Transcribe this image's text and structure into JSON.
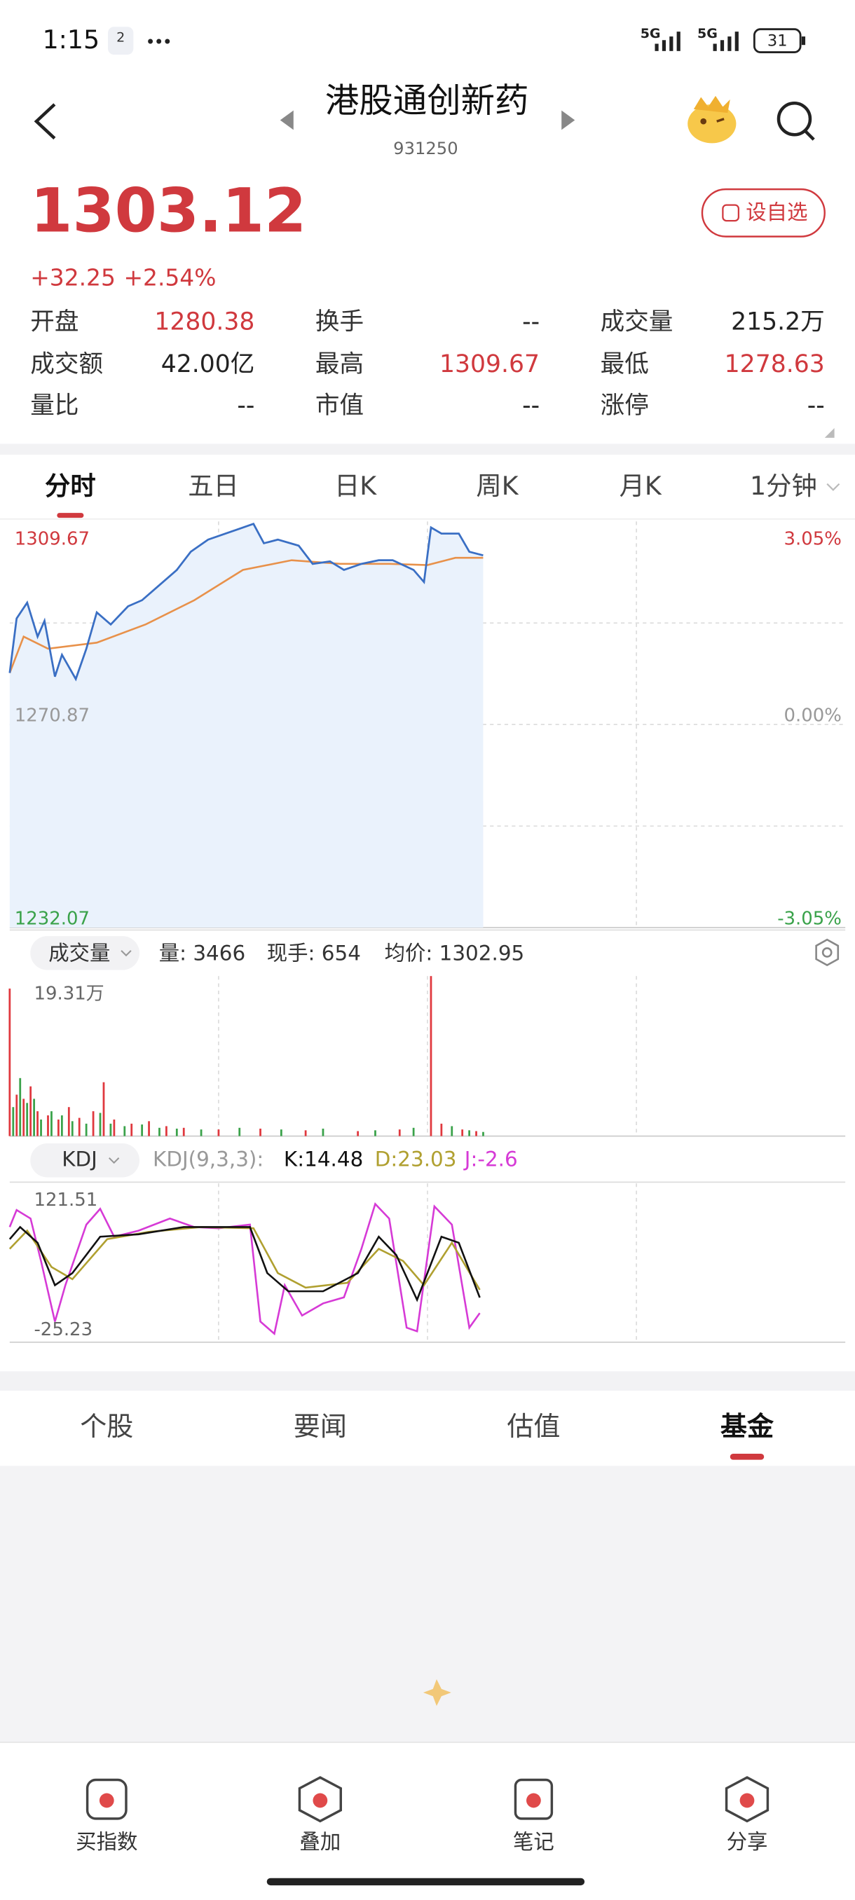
{
  "status_bar": {
    "time": "1:15",
    "badge": "2",
    "network": [
      "5G",
      "5G"
    ],
    "battery": "31"
  },
  "header": {
    "title": "港股通创新药",
    "code": "931250"
  },
  "quote": {
    "price": "1303.12",
    "change": "+32.25",
    "change_pct": "+2.54%",
    "watch_button": "设自选",
    "color": "#d0393e"
  },
  "stats": [
    [
      {
        "label": "开盘",
        "value": "1280.38",
        "color": "#d0393e"
      },
      {
        "label": "换手",
        "value": "--",
        "color": "#222222"
      },
      {
        "label": "成交量",
        "value": "215.2万",
        "color": "#222222"
      }
    ],
    [
      {
        "label": "成交额",
        "value": "42.00亿",
        "color": "#222222"
      },
      {
        "label": "最高",
        "value": "1309.67",
        "color": "#d0393e"
      },
      {
        "label": "最低",
        "value": "1278.63",
        "color": "#d0393e"
      }
    ],
    [
      {
        "label": "量比",
        "value": "--",
        "color": "#222222"
      },
      {
        "label": "市值",
        "value": "--",
        "color": "#222222"
      },
      {
        "label": "涨停",
        "value": "--",
        "color": "#222222"
      }
    ]
  ],
  "tabs": {
    "items": [
      "分时",
      "五日",
      "日K",
      "周K",
      "月K",
      "1分钟"
    ],
    "active": 0
  },
  "intraday": {
    "type": "line",
    "xlim": [
      0,
      240
    ],
    "ylim": [
      1232.07,
      1309.67
    ],
    "yticks": [
      1309.67,
      1270.87,
      1232.07
    ],
    "y2lim": [
      -3.05,
      3.05
    ],
    "y2ticks": [
      {
        "value": 3.05,
        "label": "3.05%"
      },
      {
        "value": 0,
        "label": "0.00%"
      },
      {
        "value": -3.05,
        "label": "-3.05%"
      }
    ],
    "ygrid": [
      1290.27,
      1270.87,
      1251.47
    ],
    "xgrid": [
      60,
      120,
      180
    ],
    "price": {
      "color": "#3a6fc4",
      "fill": "#eaf2fc",
      "x": [
        0,
        2,
        5,
        8,
        10,
        13,
        15,
        19,
        22,
        25,
        29,
        34,
        38,
        42,
        48,
        52,
        57,
        62,
        66,
        70,
        73,
        77,
        83,
        87,
        92,
        96,
        101,
        106,
        110,
        116,
        119,
        121,
        124,
        129,
        132,
        136
      ],
      "values": [
        1280.71,
        1291.14,
        1294.15,
        1287.67,
        1290.68,
        1280.02,
        1284.19,
        1279.56,
        1285.35,
        1292.3,
        1289.98,
        1293.46,
        1294.61,
        1296.93,
        1300.4,
        1303.88,
        1306.2,
        1307.35,
        1308.28,
        1309.21,
        1305.5,
        1306.2,
        1305.04,
        1301.56,
        1302.03,
        1300.4,
        1301.56,
        1302.26,
        1302.26,
        1300.4,
        1298.09,
        1308.51,
        1307.35,
        1307.35,
        1303.88,
        1303.18
      ]
    },
    "average": {
      "color": "#e8914a",
      "x": [
        0,
        4,
        11,
        25,
        39,
        53,
        67,
        81,
        95,
        109,
        120,
        128,
        136
      ],
      "values": [
        1280.71,
        1287.67,
        1285.35,
        1286.51,
        1289.98,
        1294.61,
        1300.4,
        1302.26,
        1301.56,
        1301.56,
        1301.33,
        1302.72,
        1302.72
      ]
    }
  },
  "volume": {
    "selector": "成交量",
    "volume": "量: 3466",
    "hand": "现手: 654",
    "avg_price": "均价: 1302.95",
    "type": "bar",
    "xlim": [
      0,
      240
    ],
    "ylim": [
      0,
      19.31
    ],
    "yticks": [
      {
        "value": 19.31,
        "label": "19.31万"
      }
    ],
    "xgrid": [
      60,
      120,
      180
    ],
    "up": {
      "color": "#e0383e",
      "x": [
        0,
        2,
        4,
        6,
        8,
        11,
        14,
        17,
        20,
        24,
        27,
        30,
        35,
        40,
        45,
        50,
        60,
        72,
        85,
        100,
        112,
        121,
        124,
        130,
        134
      ],
      "values": [
        17.8,
        5,
        4.5,
        6,
        3,
        2.5,
        2,
        3.5,
        2.2,
        3,
        6.5,
        2,
        1.5,
        1.8,
        1.2,
        1,
        0.8,
        0.9,
        0.7,
        0.6,
        0.8,
        19.31,
        1.5,
        0.8,
        0.6
      ]
    },
    "down": {
      "color": "#3aa24a",
      "x": [
        1,
        3,
        5,
        7,
        9,
        12,
        15,
        18,
        22,
        26,
        29,
        33,
        38,
        43,
        48,
        55,
        66,
        78,
        90,
        105,
        116,
        127,
        132,
        136
      ],
      "values": [
        3.5,
        7,
        4,
        4.5,
        2,
        3,
        2.5,
        1.8,
        1.5,
        2.8,
        1.5,
        1.2,
        1.4,
        1,
        0.9,
        0.8,
        1,
        0.8,
        0.9,
        0.7,
        1,
        1.2,
        0.7,
        0.5
      ]
    }
  },
  "kdj": {
    "selector": "KDJ",
    "params": "KDJ(9,3,3):",
    "k_label": "K:14.48",
    "d_label": "D:23.03",
    "j_label": "J:-2.6",
    "type": "line",
    "xlim": [
      0,
      240
    ],
    "ylim": [
      -25.23,
      121.51
    ],
    "yticks": [
      121.51,
      -25.23
    ],
    "xgrid": [
      60,
      120,
      180
    ],
    "k": {
      "color": "#111111",
      "x": [
        0,
        3,
        8,
        13,
        18,
        26,
        37,
        50,
        69,
        74,
        80,
        90,
        100,
        106,
        111,
        117,
        124,
        129,
        135
      ],
      "values": [
        78.8,
        92.2,
        74.8,
        28.1,
        41.5,
        81.5,
        84.2,
        92.2,
        92.2,
        41.5,
        21.5,
        21.5,
        41.5,
        81.5,
        61.5,
        12.1,
        81.5,
        74.8,
        14.48
      ]
    },
    "d": {
      "color": "#b0a030",
      "x": [
        0,
        5,
        12,
        18,
        28,
        40,
        55,
        70,
        77,
        85,
        97,
        106,
        113,
        119,
        127,
        135
      ],
      "values": [
        68.1,
        88.2,
        48.1,
        34.8,
        78.8,
        86.8,
        92.2,
        90.8,
        41.5,
        25.4,
        30.8,
        68.1,
        54.8,
        28.1,
        74.8,
        23.03
      ]
    },
    "j": {
      "color": "#d63ad6",
      "x": [
        0,
        2,
        6,
        9,
        13,
        16,
        22,
        26,
        30,
        37,
        46,
        53,
        60,
        69,
        72,
        76,
        79,
        84,
        90,
        96,
        101,
        105,
        109,
        114,
        117,
        122,
        127,
        132,
        135
      ],
      "values": [
        92.2,
        110.8,
        101.5,
        54.8,
        -11.9,
        28.1,
        94.8,
        112.2,
        81.5,
        88.2,
        101.5,
        92.2,
        90.8,
        94.8,
        -11.9,
        -25.2,
        28.1,
        -5.2,
        8.1,
        14.8,
        68.1,
        117.5,
        101.5,
        -18.6,
        -22.6,
        114.8,
        94.8,
        -18.6,
        -2.6
      ]
    }
  },
  "bottom_tabs": {
    "items": [
      "个股",
      "要闻",
      "估值",
      "基金"
    ],
    "active": 3
  },
  "nav": [
    "买指数",
    "叠加",
    "笔记",
    "分享"
  ]
}
